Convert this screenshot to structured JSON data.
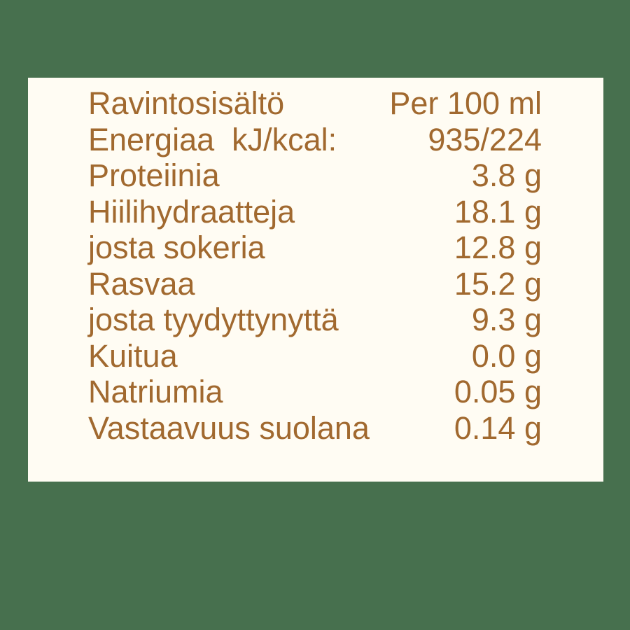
{
  "colors": {
    "background_green": "#47704e",
    "panel_cream": "#fffcf3",
    "text_brown": "#a1692f"
  },
  "nutrition_label": {
    "title": "Ravintosisältö",
    "amount_basis": "Per 100 ml",
    "rows": [
      {
        "name": "Energiaa  kJ/kcal:",
        "value": "935/224"
      },
      {
        "name": "Proteiinia",
        "value": "3.8 g"
      },
      {
        "name": "Hiilihydraatteja",
        "value": "18.1 g"
      },
      {
        "name": "josta sokeria",
        "value": "12.8 g"
      },
      {
        "name": "Rasvaa",
        "value": "15.2 g"
      },
      {
        "name": "josta tyydyttynyttä",
        "value": "9.3 g"
      },
      {
        "name": "Kuitua",
        "value": "0.0 g"
      },
      {
        "name": "Natriumia",
        "value": "0.05 g"
      },
      {
        "name": "Vastaavuus suolana",
        "value": "0.14 g"
      }
    ]
  }
}
